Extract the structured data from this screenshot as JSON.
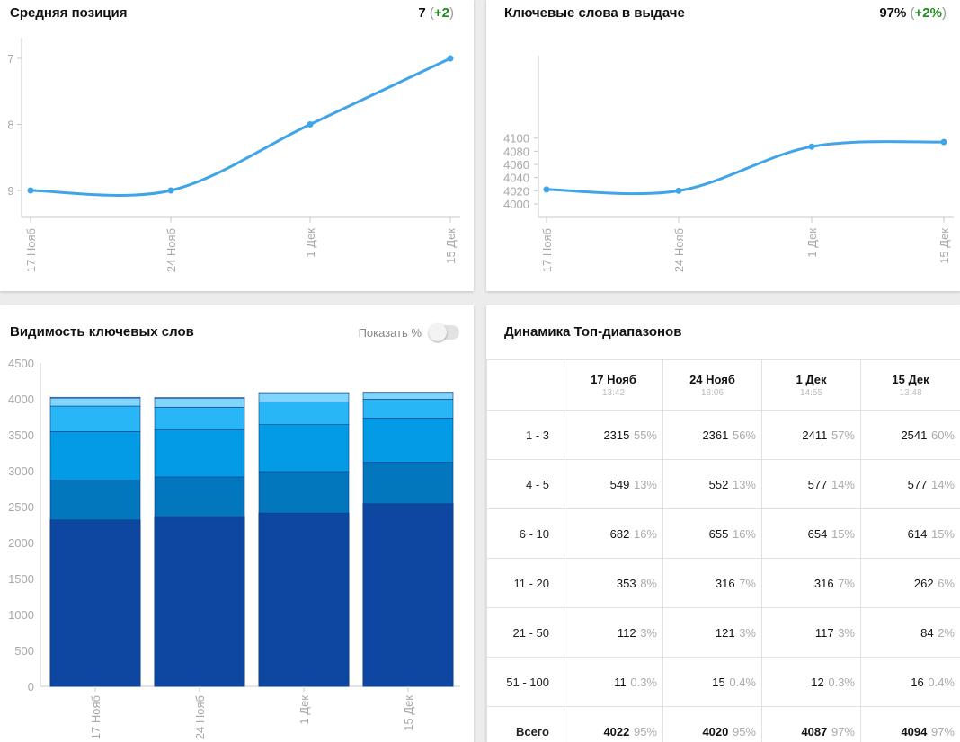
{
  "avg_position": {
    "title": "Средняя позиция",
    "value": "7",
    "delta": "+2",
    "chart_data": {
      "type": "line",
      "x": [
        "17 Нояб",
        "24 Нояб",
        "1 Дек",
        "15 Дек"
      ],
      "y": [
        9,
        9,
        8,
        7
      ],
      "y_ticks": [
        7,
        8,
        9
      ],
      "ylim": [
        9.4,
        6.8
      ],
      "y_reversed": true,
      "color": "#3fa4e8"
    }
  },
  "keywords": {
    "title": "Ключевые слова в выдаче",
    "value": "97%",
    "delta": "+2%",
    "chart_data": {
      "type": "line",
      "x": [
        "17 Нояб",
        "24 Нояб",
        "1 Дек",
        "15 Дек"
      ],
      "y": [
        4022,
        4020,
        4087,
        4094
      ],
      "y_ticks": [
        4000,
        4020,
        4040,
        4060,
        4080,
        4100
      ],
      "ylim": [
        3994,
        4110
      ],
      "color": "#3fa4e8"
    }
  },
  "visibility": {
    "title": "Видимость ключевых слов",
    "toggle_label": "Показать %",
    "chart_data": {
      "type": "bar",
      "stacked": true,
      "categories": [
        "17 Нояб",
        "24 Нояб",
        "1 Дек",
        "15 Дек"
      ],
      "series": [
        {
          "values": [
            2315,
            2361,
            2411,
            2541
          ],
          "color": "#0d47a1"
        },
        {
          "values": [
            549,
            552,
            577,
            577
          ],
          "color": "#0277bd"
        },
        {
          "values": [
            682,
            655,
            654,
            614
          ],
          "color": "#039be5"
        },
        {
          "values": [
            353,
            316,
            316,
            262
          ],
          "color": "#29b6f6"
        },
        {
          "values": [
            112,
            121,
            117,
            84
          ],
          "color": "#81d4fa"
        },
        {
          "values": [
            11,
            15,
            12,
            16
          ],
          "color": "#b3e5fc"
        }
      ],
      "y_ticks": [
        0,
        500,
        1000,
        1500,
        2000,
        2500,
        3000,
        3500,
        4000,
        4500
      ],
      "ylim": [
        0,
        4500
      ]
    }
  },
  "top_ranges": {
    "title": "Динамика Топ-диапазонов",
    "columns": [
      {
        "date": "17 Нояб",
        "time": "13:42"
      },
      {
        "date": "24 Нояб",
        "time": "18:06"
      },
      {
        "date": "1 Дек",
        "time": "14:55"
      },
      {
        "date": "15 Дек",
        "time": "13:48"
      }
    ],
    "rows": [
      {
        "label": "1 - 3",
        "cells": [
          {
            "v": "2315",
            "p": "55%"
          },
          {
            "v": "2361",
            "p": "56%"
          },
          {
            "v": "2411",
            "p": "57%"
          },
          {
            "v": "2541",
            "p": "60%"
          }
        ]
      },
      {
        "label": "4 - 5",
        "cells": [
          {
            "v": "549",
            "p": "13%"
          },
          {
            "v": "552",
            "p": "13%"
          },
          {
            "v": "577",
            "p": "14%"
          },
          {
            "v": "577",
            "p": "14%"
          }
        ]
      },
      {
        "label": "6 - 10",
        "cells": [
          {
            "v": "682",
            "p": "16%"
          },
          {
            "v": "655",
            "p": "16%"
          },
          {
            "v": "654",
            "p": "15%"
          },
          {
            "v": "614",
            "p": "15%"
          }
        ]
      },
      {
        "label": "11 - 20",
        "cells": [
          {
            "v": "353",
            "p": "8%"
          },
          {
            "v": "316",
            "p": "7%"
          },
          {
            "v": "316",
            "p": "7%"
          },
          {
            "v": "262",
            "p": "6%"
          }
        ]
      },
      {
        "label": "21 - 50",
        "cells": [
          {
            "v": "112",
            "p": "3%"
          },
          {
            "v": "121",
            "p": "3%"
          },
          {
            "v": "117",
            "p": "3%"
          },
          {
            "v": "84",
            "p": "2%"
          }
        ]
      },
      {
        "label": "51 - 100",
        "cells": [
          {
            "v": "11",
            "p": "0.3%"
          },
          {
            "v": "15",
            "p": "0.4%"
          },
          {
            "v": "12",
            "p": "0.3%"
          },
          {
            "v": "16",
            "p": "0.4%"
          }
        ]
      },
      {
        "label": "Всего",
        "total": true,
        "cells": [
          {
            "v": "4022",
            "p": "95%"
          },
          {
            "v": "4020",
            "p": "95%"
          },
          {
            "v": "4087",
            "p": "97%"
          },
          {
            "v": "4094",
            "p": "97%"
          }
        ]
      }
    ]
  }
}
